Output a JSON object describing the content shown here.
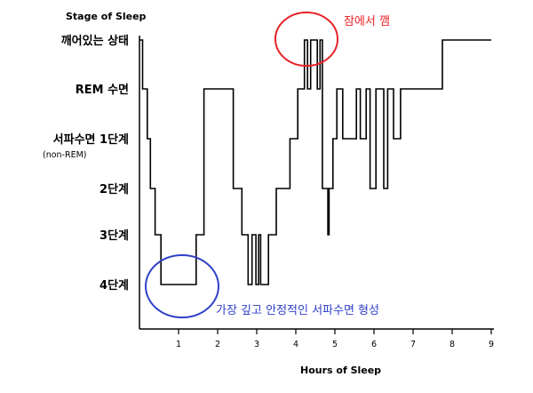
{
  "chart_data": {
    "type": "line",
    "ylabel": "Stage of Sleep",
    "xlabel": "Hours of Sleep",
    "x_ticks": [
      "1",
      "2",
      "3",
      "4",
      "5",
      "6",
      "7",
      "8",
      "9"
    ],
    "xlim": [
      0,
      9
    ],
    "stages": [
      {
        "label": "깨어있는 상태",
        "sub": ""
      },
      {
        "label": "REM 수면",
        "sub": ""
      },
      {
        "label": "서파수면 1단계",
        "sub": "(non-REM)"
      },
      {
        "label": "2단계",
        "sub": ""
      },
      {
        "label": "3단계",
        "sub": ""
      },
      {
        "label": "4단계",
        "sub": ""
      }
    ],
    "series": [
      {
        "x": [
          0.0,
          0.05,
          0.08,
          0.2,
          0.28,
          0.4,
          0.55,
          1.45,
          1.65,
          2.4,
          2.62,
          2.78,
          2.88,
          2.98,
          3.05,
          3.1,
          3.3,
          3.5,
          3.85,
          4.05,
          4.22,
          4.3,
          4.38,
          4.55,
          4.62,
          4.68,
          4.82,
          4.85,
          4.95,
          5.05,
          5.2,
          5.55,
          5.65,
          5.8,
          5.9,
          6.05,
          6.25,
          6.35,
          6.5,
          6.68,
          6.8,
          7.75,
          9.0
        ],
        "y": [
          0,
          0,
          1,
          2,
          3,
          4,
          5,
          4,
          1,
          3,
          4,
          5,
          4,
          5,
          4,
          5,
          4,
          3,
          2,
          1,
          0,
          1,
          0,
          1,
          0,
          3,
          4,
          3,
          2,
          1,
          2,
          1,
          2,
          1,
          3,
          1,
          3,
          1,
          2,
          1,
          1,
          0,
          0
        ]
      }
    ],
    "annotations": [
      {
        "text": "잠에서 깸",
        "color": "#e8232a",
        "target": "4.3–4.6 h, 깨어있는 상태"
      },
      {
        "text": "가장 깊고 안정적인 서파수면 형성",
        "color": "#2e3fc8",
        "target": "0.55–1.45 h, 4단계"
      }
    ],
    "line_color": "#000000",
    "grid": false
  }
}
